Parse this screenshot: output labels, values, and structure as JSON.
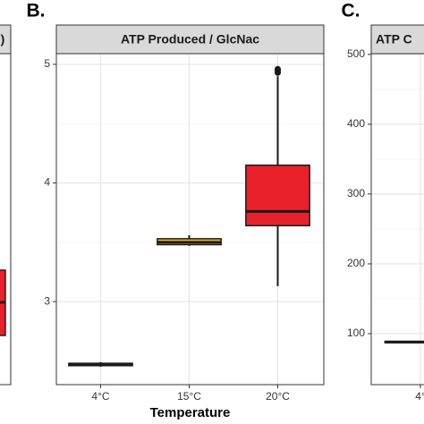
{
  "chart_data": [
    {
      "type": "box",
      "panel_label": "B.",
      "title": "ATP Produced / GlcNac",
      "xlabel": "Temperature",
      "categories": [
        "4°C",
        "15°C",
        "20°C"
      ],
      "boxes": [
        {
          "min": 2.45,
          "q1": 2.46,
          "median": 2.47,
          "q3": 2.48,
          "max": 2.49,
          "outliers": [],
          "color": "#2b2b2b"
        },
        {
          "min": 3.47,
          "q1": 3.48,
          "median": 3.5,
          "q3": 3.53,
          "max": 3.56,
          "outliers": [],
          "color": "#e8b820"
        },
        {
          "min": 3.13,
          "q1": 3.64,
          "median": 3.76,
          "q3": 4.15,
          "max": 4.9,
          "outliers": [
            4.93,
            4.95,
            4.96
          ],
          "color": "#e8212b"
        }
      ],
      "ylim": [
        2.3,
        5.09
      ],
      "yticks": [
        3,
        4,
        5
      ],
      "grid": true
    },
    {
      "type": "box",
      "panel_label": "C.",
      "title": "ATP C",
      "categories": [
        "4°"
      ],
      "boxes": [
        {
          "min": 87,
          "q1": 87,
          "median": 88,
          "q3": 89,
          "max": 89,
          "outliers": [],
          "color": "#2b2b2b"
        }
      ],
      "ylim": [
        27,
        501
      ],
      "yticks": [
        100,
        200,
        300,
        400,
        500
      ],
      "grid": true
    },
    {
      "type": "fragment",
      "title": ")"
    }
  ]
}
